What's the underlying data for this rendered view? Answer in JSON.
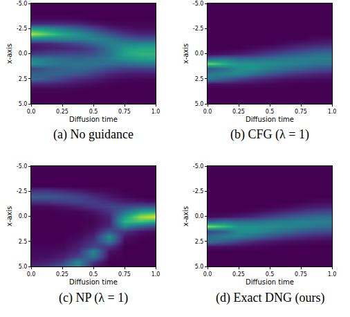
{
  "chart_data": [
    {
      "type": "heatmap",
      "title": "(a) No guidance",
      "x_label": "Diffusion time",
      "y_label": "x-axis",
      "color": "Viridis",
      "x": [
        0,
        0.125,
        0.25,
        0.375,
        0.5,
        0.625,
        0.75,
        0.875,
        1
      ],
      "y": [
        -5,
        -4.5,
        -4,
        -3.5,
        -3,
        -2.5,
        -2,
        -1.5,
        -1,
        -0.5,
        0,
        0.5,
        1,
        1.5,
        2,
        2.5,
        3,
        3.5,
        4,
        4.5,
        5
      ],
      "z": [
        [
          0,
          0,
          0,
          0,
          0,
          0,
          0,
          0,
          0
        ],
        [
          0,
          0,
          0,
          0,
          0,
          0,
          0,
          0,
          0
        ],
        [
          0,
          0,
          0,
          0,
          0,
          0,
          0,
          0,
          0
        ],
        [
          0.02,
          0.02,
          0.02,
          0.01,
          0,
          0,
          0,
          0,
          0
        ],
        [
          0.1,
          0.12,
          0.12,
          0.1,
          0.05,
          0.02,
          0.01,
          0.01,
          0.01
        ],
        [
          0.55,
          0.5,
          0.4,
          0.3,
          0.2,
          0.1,
          0.05,
          0.03,
          0.03
        ],
        [
          0.9,
          0.75,
          0.6,
          0.5,
          0.38,
          0.25,
          0.15,
          0.1,
          0.1
        ],
        [
          0.45,
          0.45,
          0.45,
          0.45,
          0.45,
          0.4,
          0.3,
          0.25,
          0.25
        ],
        [
          0.08,
          0.1,
          0.15,
          0.22,
          0.32,
          0.42,
          0.45,
          0.45,
          0.45
        ],
        [
          0.05,
          0.08,
          0.1,
          0.12,
          0.2,
          0.38,
          0.55,
          0.6,
          0.6
        ],
        [
          0.15,
          0.2,
          0.22,
          0.22,
          0.25,
          0.38,
          0.58,
          0.65,
          0.65
        ],
        [
          0.45,
          0.4,
          0.35,
          0.32,
          0.35,
          0.4,
          0.5,
          0.55,
          0.58
        ],
        [
          0.5,
          0.42,
          0.38,
          0.38,
          0.38,
          0.35,
          0.35,
          0.38,
          0.4
        ],
        [
          0.2,
          0.28,
          0.32,
          0.35,
          0.3,
          0.22,
          0.18,
          0.18,
          0.2
        ],
        [
          0.3,
          0.3,
          0.3,
          0.25,
          0.18,
          0.1,
          0.07,
          0.06,
          0.07
        ],
        [
          0.35,
          0.28,
          0.2,
          0.12,
          0.08,
          0.04,
          0.02,
          0.02,
          0.02
        ],
        [
          0.1,
          0.1,
          0.08,
          0.05,
          0.03,
          0.01,
          0,
          0,
          0
        ],
        [
          0.02,
          0.02,
          0.02,
          0.01,
          0,
          0,
          0,
          0,
          0
        ],
        [
          0,
          0,
          0,
          0,
          0,
          0,
          0,
          0,
          0
        ],
        [
          0,
          0,
          0,
          0,
          0,
          0,
          0,
          0,
          0
        ],
        [
          0,
          0,
          0,
          0,
          0,
          0,
          0,
          0,
          0
        ]
      ],
      "zlim": [
        0,
        1
      ],
      "xlim": [
        0,
        1
      ],
      "ylim": [
        -5,
        5
      ],
      "xticks": [
        {
          "value": 0,
          "label": "0.0"
        },
        0.25,
        0.5,
        0.75,
        {
          "value": 1,
          "label": "1.0"
        }
      ],
      "yticks": [
        {
          "value": -5,
          "label": "-5.0"
        },
        -2.5,
        {
          "value": 0,
          "label": "0.0"
        },
        2.5,
        {
          "value": 5,
          "label": "5.0"
        }
      ]
    },
    {
      "type": "heatmap",
      "title": "(b) CFG (λ = 1)",
      "x_label": "Diffusion time",
      "y_label": "x-axis",
      "color": "Viridis",
      "x": [
        0,
        0.125,
        0.25,
        0.375,
        0.5,
        0.625,
        0.75,
        0.875,
        1
      ],
      "y": [
        -5,
        -4.5,
        -4,
        -3.5,
        -3,
        -2.5,
        -2,
        -1.5,
        -1,
        -0.5,
        0,
        0.5,
        1,
        1.5,
        2,
        2.5,
        3,
        3.5,
        4,
        4.5,
        5
      ],
      "z": [
        [
          0,
          0,
          0,
          0,
          0,
          0,
          0,
          0,
          0
        ],
        [
          0,
          0,
          0,
          0,
          0,
          0,
          0,
          0,
          0
        ],
        [
          0,
          0,
          0,
          0,
          0,
          0,
          0,
          0,
          0
        ],
        [
          0,
          0,
          0,
          0,
          0,
          0,
          0,
          0,
          0
        ],
        [
          0,
          0,
          0,
          0,
          0,
          0,
          0,
          0,
          0
        ],
        [
          0,
          0,
          0,
          0,
          0,
          0,
          0,
          0,
          0
        ],
        [
          0,
          0,
          0,
          0,
          0,
          0,
          0,
          0,
          0
        ],
        [
          0,
          0,
          0,
          0,
          0,
          0,
          0,
          0.03,
          0.04
        ],
        [
          0,
          0,
          0,
          0,
          0,
          0.03,
          0.06,
          0.08,
          0.1
        ],
        [
          0,
          0,
          0,
          0.03,
          0.06,
          0.1,
          0.15,
          0.2,
          0.22
        ],
        [
          0.02,
          0.05,
          0.08,
          0.12,
          0.18,
          0.25,
          0.3,
          0.35,
          0.36
        ],
        [
          0.35,
          0.4,
          0.35,
          0.35,
          0.38,
          0.4,
          0.42,
          0.42,
          0.42
        ],
        [
          0.8,
          0.65,
          0.5,
          0.5,
          0.48,
          0.45,
          0.42,
          0.38,
          0.36
        ],
        [
          0.25,
          0.35,
          0.5,
          0.5,
          0.42,
          0.35,
          0.3,
          0.25,
          0.22
        ],
        [
          0.4,
          0.45,
          0.45,
          0.35,
          0.25,
          0.18,
          0.13,
          0.1,
          0.08
        ],
        [
          0.4,
          0.3,
          0.2,
          0.12,
          0.08,
          0.05,
          0.04,
          0.03,
          0.02
        ],
        [
          0.05,
          0.05,
          0.04,
          0.03,
          0.02,
          0.01,
          0,
          0,
          0
        ],
        [
          0,
          0,
          0,
          0,
          0,
          0,
          0,
          0,
          0
        ],
        [
          0,
          0,
          0,
          0,
          0,
          0,
          0,
          0,
          0
        ],
        [
          0,
          0,
          0,
          0,
          0,
          0,
          0,
          0,
          0
        ],
        [
          0,
          0,
          0,
          0,
          0,
          0,
          0,
          0,
          0
        ]
      ],
      "zlim": [
        0,
        1
      ],
      "xlim": [
        0,
        1
      ],
      "ylim": [
        -5,
        5
      ],
      "xticks": [
        {
          "value": 0,
          "label": "0.0"
        },
        0.25,
        0.5,
        0.75,
        {
          "value": 1,
          "label": "1.0"
        }
      ],
      "yticks": [
        {
          "value": -5,
          "label": "-5.0"
        },
        -2.5,
        {
          "value": 0,
          "label": "0.0"
        },
        2.5,
        {
          "value": 5,
          "label": "5.0"
        }
      ]
    },
    {
      "type": "heatmap",
      "title": "(c) NP (λ = 1)",
      "x_label": "Diffusion time",
      "y_label": "x-axis",
      "color": "Viridis",
      "x": [
        0,
        0.125,
        0.25,
        0.375,
        0.5,
        0.625,
        0.75,
        0.875,
        1
      ],
      "y": [
        -5,
        -4.5,
        -4,
        -3.5,
        -3,
        -2.5,
        -2,
        -1.5,
        -1,
        -0.5,
        0,
        0.5,
        1,
        1.5,
        2,
        2.5,
        3,
        3.5,
        4,
        4.5,
        5
      ],
      "z": [
        [
          0,
          0,
          0,
          0,
          0,
          0,
          0,
          0,
          0
        ],
        [
          0,
          0,
          0,
          0,
          0,
          0,
          0,
          0,
          0
        ],
        [
          0,
          0,
          0,
          0,
          0,
          0,
          0,
          0,
          0
        ],
        [
          0,
          0,
          0,
          0,
          0,
          0,
          0,
          0,
          0
        ],
        [
          0,
          0,
          0,
          0,
          0,
          0,
          0,
          0,
          0
        ],
        [
          0.15,
          0.15,
          0.12,
          0.08,
          0.04,
          0.02,
          0,
          0,
          0
        ],
        [
          0.3,
          0.28,
          0.25,
          0.2,
          0.12,
          0.06,
          0.02,
          0,
          0
        ],
        [
          0.15,
          0.15,
          0.18,
          0.2,
          0.18,
          0.12,
          0.08,
          0.05,
          0.03
        ],
        [
          0.02,
          0.03,
          0.05,
          0.1,
          0.15,
          0.2,
          0.2,
          0.25,
          0.25
        ],
        [
          0,
          0,
          0.01,
          0.02,
          0.05,
          0.15,
          0.35,
          0.55,
          0.6
        ],
        [
          0,
          0,
          0,
          0,
          0.02,
          0.1,
          0.55,
          0.85,
          0.95
        ],
        [
          0,
          0,
          0,
          0,
          0.01,
          0.08,
          0.65,
          0.7,
          0.6
        ],
        [
          0,
          0,
          0,
          0,
          0.02,
          0.12,
          0.45,
          0.3,
          0.2
        ],
        [
          0,
          0,
          0,
          0,
          0.05,
          0.25,
          0.15,
          0.05,
          0.03
        ],
        [
          0,
          0,
          0,
          0.02,
          0.1,
          0.5,
          0.05,
          0.01,
          0
        ],
        [
          0,
          0,
          0,
          0.05,
          0.15,
          0.4,
          0.02,
          0,
          0
        ],
        [
          0.01,
          0.01,
          0.02,
          0.08,
          0.2,
          0.15,
          0,
          0,
          0
        ],
        [
          0.02,
          0.02,
          0.04,
          0.12,
          0.45,
          0.05,
          0,
          0,
          0
        ],
        [
          0.03,
          0.04,
          0.08,
          0.2,
          0.4,
          0.02,
          0,
          0,
          0
        ],
        [
          0.05,
          0.08,
          0.15,
          0.45,
          0.15,
          0,
          0,
          0,
          0
        ],
        [
          0.1,
          0.15,
          0.3,
          0.5,
          0.05,
          0,
          0,
          0,
          0
        ]
      ],
      "zlim": [
        0,
        1
      ],
      "xlim": [
        0,
        1
      ],
      "ylim": [
        -5,
        5
      ],
      "xticks": [
        {
          "value": 0,
          "label": "0.0"
        },
        0.25,
        0.5,
        0.75,
        {
          "value": 1,
          "label": "1.0"
        }
      ],
      "yticks": [
        {
          "value": -5,
          "label": "-5.0"
        },
        -2.5,
        {
          "value": 0,
          "label": "0.0"
        },
        2.5,
        {
          "value": 5,
          "label": "5.0"
        }
      ]
    },
    {
      "type": "heatmap",
      "title": "(d) Exact DNG (ours)",
      "x_label": "Diffusion time",
      "y_label": "x-axis",
      "color": "Viridis",
      "x": [
        0,
        0.125,
        0.25,
        0.375,
        0.5,
        0.625,
        0.75,
        0.875,
        1
      ],
      "y": [
        -5,
        -4.5,
        -4,
        -3.5,
        -3,
        -2.5,
        -2,
        -1.5,
        -1,
        -0.5,
        0,
        0.5,
        1,
        1.5,
        2,
        2.5,
        3,
        3.5,
        4,
        4.5,
        5
      ],
      "z": [
        [
          0,
          0,
          0,
          0,
          0,
          0,
          0,
          0,
          0
        ],
        [
          0,
          0,
          0,
          0,
          0,
          0,
          0,
          0,
          0
        ],
        [
          0,
          0,
          0,
          0,
          0,
          0,
          0,
          0,
          0
        ],
        [
          0,
          0,
          0,
          0,
          0,
          0,
          0,
          0,
          0
        ],
        [
          0,
          0,
          0,
          0,
          0,
          0,
          0,
          0,
          0
        ],
        [
          0,
          0,
          0,
          0,
          0,
          0,
          0,
          0,
          0
        ],
        [
          0,
          0,
          0,
          0,
          0,
          0,
          0,
          0,
          0
        ],
        [
          0,
          0,
          0,
          0,
          0,
          0,
          0,
          0.02,
          0.03
        ],
        [
          0,
          0,
          0,
          0,
          0,
          0.02,
          0.05,
          0.07,
          0.08
        ],
        [
          0,
          0,
          0,
          0.02,
          0.05,
          0.09,
          0.14,
          0.18,
          0.2
        ],
        [
          0.02,
          0.04,
          0.07,
          0.12,
          0.18,
          0.25,
          0.3,
          0.34,
          0.35
        ],
        [
          0.3,
          0.38,
          0.35,
          0.36,
          0.4,
          0.42,
          0.44,
          0.43,
          0.42
        ],
        [
          0.85,
          0.7,
          0.52,
          0.5,
          0.48,
          0.45,
          0.42,
          0.38,
          0.36
        ],
        [
          0.2,
          0.3,
          0.48,
          0.5,
          0.42,
          0.35,
          0.28,
          0.24,
          0.22
        ],
        [
          0.35,
          0.42,
          0.42,
          0.33,
          0.24,
          0.16,
          0.12,
          0.09,
          0.08
        ],
        [
          0.38,
          0.28,
          0.18,
          0.1,
          0.06,
          0.04,
          0.03,
          0.02,
          0.02
        ],
        [
          0.04,
          0.04,
          0.03,
          0.02,
          0.01,
          0,
          0,
          0,
          0
        ],
        [
          0,
          0,
          0,
          0,
          0,
          0,
          0,
          0,
          0
        ],
        [
          0,
          0,
          0,
          0,
          0,
          0,
          0,
          0,
          0
        ],
        [
          0,
          0,
          0,
          0,
          0,
          0,
          0,
          0,
          0
        ],
        [
          0,
          0,
          0,
          0,
          0,
          0,
          0,
          0,
          0
        ]
      ],
      "zlim": [
        0,
        1
      ],
      "xlim": [
        0,
        1
      ],
      "ylim": [
        -5,
        5
      ],
      "xticks": [
        {
          "value": 0,
          "label": "0.0"
        },
        0.25,
        0.5,
        0.75,
        {
          "value": 1,
          "label": "1.0"
        }
      ],
      "yticks": [
        {
          "value": -5,
          "label": "-5.0"
        },
        -2.5,
        {
          "value": 0,
          "label": "0.0"
        },
        2.5,
        {
          "value": 5,
          "label": "5.0"
        }
      ]
    }
  ]
}
